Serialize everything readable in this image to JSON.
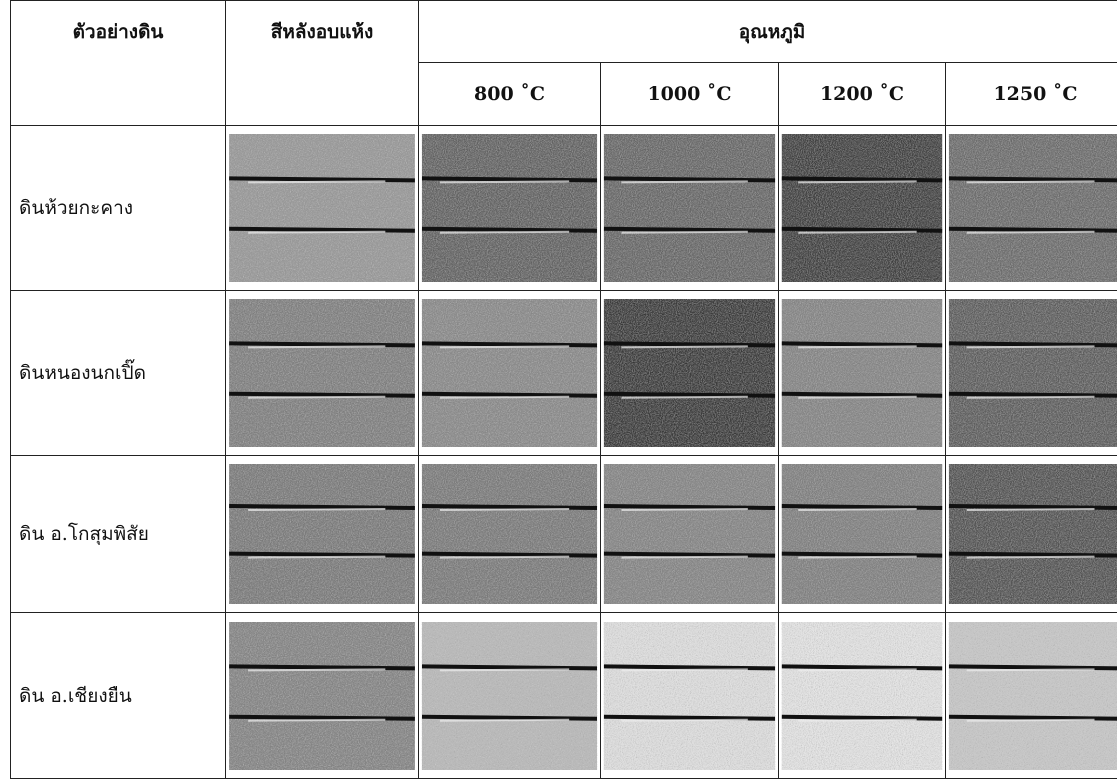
{
  "table": {
    "header": {
      "sample": "ตัวอย่างดิน",
      "dried_color": "สีหลังอบแห้ง",
      "temperature": "อุณหภูมิ",
      "temps": [
        "800 ˚C",
        "1000 ˚C",
        "1200 ˚C",
        "1250 ˚C"
      ]
    },
    "rows": [
      "ดินห้วยกะคาง",
      "ดินหนองนกเปิ๊ด",
      "ดิน อ.โกสุมพิสัย",
      "ดิน อ.เชียงยืน"
    ]
  }
}
